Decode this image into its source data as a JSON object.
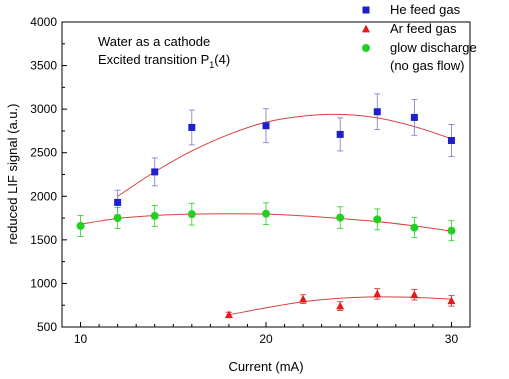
{
  "chart_data": {
    "type": "scatter",
    "xlabel": "Current (mA)",
    "ylabel": "reduced LIF signal (a.u.)",
    "xlim": [
      9,
      31
    ],
    "ylim": [
      500,
      4000
    ],
    "xticks": [
      10,
      20,
      30
    ],
    "yticks": [
      500,
      1000,
      1500,
      2000,
      2500,
      3000,
      3500,
      4000
    ],
    "grid": false,
    "legend_position": "top-right",
    "annotations": {
      "line1": "Water as a cathode",
      "line2_prefix": "Excited transition P",
      "line2_sub": "1",
      "line2_suffix": "(4)"
    },
    "colors": {
      "he": "#1f1fcc",
      "ar": "#e31a1a",
      "glow": "#22d022",
      "fit": "#d94040",
      "errorbar": "#7777cc"
    },
    "series": [
      {
        "key": "he",
        "name": "He feed gas",
        "marker": "square",
        "x": [
          12,
          14,
          16,
          20,
          24,
          26,
          28,
          30
        ],
        "y": [
          1930,
          2280,
          2790,
          2810,
          2710,
          2970,
          2905,
          2640
        ],
        "err": [
          140,
          160,
          200,
          195,
          190,
          205,
          205,
          185
        ],
        "fit": [
          [
            12,
            2000
          ],
          [
            14,
            2280
          ],
          [
            16,
            2520
          ],
          [
            18,
            2710
          ],
          [
            20,
            2850
          ],
          [
            22,
            2920
          ],
          [
            24,
            2940
          ],
          [
            26,
            2900
          ],
          [
            28,
            2800
          ],
          [
            30,
            2660
          ]
        ]
      },
      {
        "key": "ar",
        "name": "Ar feed gas",
        "marker": "triangle",
        "x": [
          18,
          22,
          24,
          26,
          28,
          30
        ],
        "y": [
          640,
          820,
          740,
          880,
          870,
          800
        ],
        "err": [
          30,
          50,
          50,
          60,
          60,
          60
        ],
        "fit": [
          [
            18,
            640
          ],
          [
            20,
            720
          ],
          [
            22,
            790
          ],
          [
            24,
            830
          ],
          [
            26,
            845
          ],
          [
            28,
            840
          ],
          [
            30,
            820
          ]
        ]
      },
      {
        "key": "glow",
        "name": "glow discharge",
        "name_line2": "(no gas flow)",
        "marker": "circle",
        "x": [
          10,
          12,
          14,
          16,
          20,
          24,
          26,
          28,
          30
        ],
        "y": [
          1660,
          1750,
          1775,
          1795,
          1800,
          1755,
          1735,
          1640,
          1605
        ],
        "err": [
          120,
          120,
          120,
          125,
          125,
          125,
          120,
          115,
          115
        ],
        "fit": [
          [
            10,
            1680
          ],
          [
            12,
            1745
          ],
          [
            14,
            1780
          ],
          [
            16,
            1795
          ],
          [
            18,
            1800
          ],
          [
            20,
            1795
          ],
          [
            22,
            1775
          ],
          [
            24,
            1745
          ],
          [
            26,
            1710
          ],
          [
            28,
            1660
          ],
          [
            30,
            1600
          ]
        ]
      }
    ]
  }
}
